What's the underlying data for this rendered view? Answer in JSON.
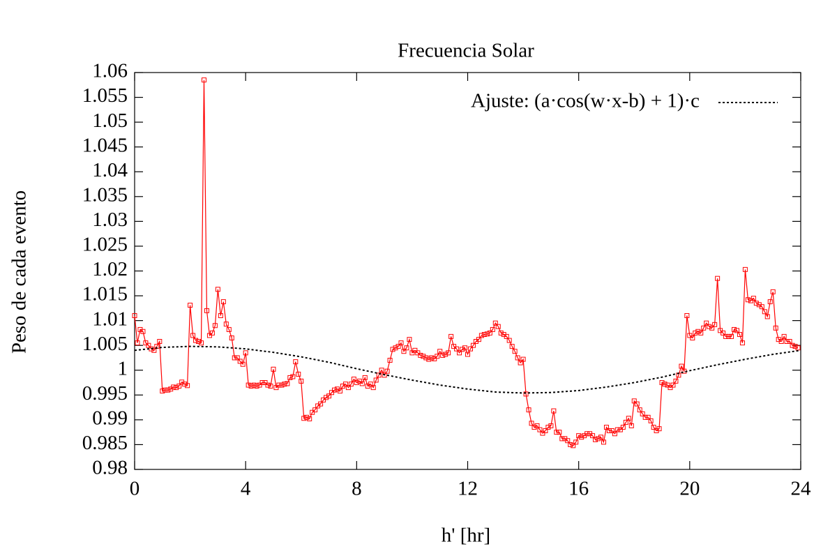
{
  "chart_data": {
    "type": "line",
    "title": "Frecuencia Solar",
    "x_label": "h' [hr]",
    "y_label": "Peso de cada evento",
    "xlim": [
      0,
      24
    ],
    "ylim": [
      0.98,
      1.06
    ],
    "xticks": [
      0,
      4,
      8,
      12,
      16,
      20,
      24
    ],
    "yticks": [
      0.98,
      0.985,
      0.99,
      0.995,
      1,
      1.005,
      1.01,
      1.015,
      1.02,
      1.025,
      1.03,
      1.035,
      1.04,
      1.045,
      1.05,
      1.055,
      1.06
    ],
    "grid": false,
    "legend": "top-right",
    "series": [
      {
        "color": "#ff0000",
        "marker": "square",
        "x": [
          0,
          0.1,
          0.2,
          0.3,
          0.4,
          0.5,
          0.6,
          0.7,
          0.8,
          0.9,
          1,
          1.1,
          1.2,
          1.3,
          1.4,
          1.5,
          1.6,
          1.7,
          1.8,
          1.9,
          2,
          2.1,
          2.2,
          2.3,
          2.4,
          2.5,
          2.6,
          2.7,
          2.8,
          2.9,
          3,
          3.1,
          3.2,
          3.3,
          3.4,
          3.5,
          3.6,
          3.7,
          3.8,
          3.9,
          4,
          4.1,
          4.2,
          4.3,
          4.4,
          4.5,
          4.6,
          4.7,
          4.8,
          4.9,
          5,
          5.1,
          5.2,
          5.3,
          5.4,
          5.5,
          5.6,
          5.7,
          5.8,
          5.9,
          6,
          6.1,
          6.2,
          6.3,
          6.4,
          6.5,
          6.6,
          6.7,
          6.8,
          6.9,
          7,
          7.1,
          7.2,
          7.3,
          7.4,
          7.5,
          7.6,
          7.7,
          7.8,
          7.9,
          8,
          8.1,
          8.2,
          8.3,
          8.4,
          8.5,
          8.6,
          8.7,
          8.8,
          8.9,
          9,
          9.1,
          9.2,
          9.3,
          9.4,
          9.5,
          9.6,
          9.7,
          9.8,
          9.9,
          10,
          10.1,
          10.2,
          10.3,
          10.4,
          10.5,
          10.6,
          10.7,
          10.8,
          10.9,
          11,
          11.1,
          11.2,
          11.3,
          11.4,
          11.5,
          11.6,
          11.7,
          11.8,
          11.9,
          12,
          12.1,
          12.2,
          12.3,
          12.4,
          12.5,
          12.6,
          12.7,
          12.8,
          12.9,
          13,
          13.1,
          13.2,
          13.3,
          13.4,
          13.5,
          13.6,
          13.7,
          13.8,
          13.9,
          14,
          14.1,
          14.2,
          14.3,
          14.4,
          14.5,
          14.6,
          14.7,
          14.8,
          14.9,
          15,
          15.1,
          15.2,
          15.3,
          15.4,
          15.5,
          15.6,
          15.7,
          15.8,
          15.9,
          16,
          16.1,
          16.2,
          16.3,
          16.4,
          16.5,
          16.6,
          16.7,
          16.8,
          16.9,
          17,
          17.1,
          17.2,
          17.3,
          17.4,
          17.5,
          17.6,
          17.7,
          17.8,
          17.9,
          18,
          18.1,
          18.2,
          18.3,
          18.4,
          18.5,
          18.6,
          18.7,
          18.8,
          18.9,
          19,
          19.1,
          19.2,
          19.3,
          19.4,
          19.5,
          19.6,
          19.7,
          19.8,
          19.9,
          20,
          20.1,
          20.2,
          20.3,
          20.4,
          20.5,
          20.6,
          20.7,
          20.8,
          20.9,
          21,
          21.1,
          21.2,
          21.3,
          21.4,
          21.5,
          21.6,
          21.7,
          21.8,
          21.9,
          22,
          22.1,
          22.2,
          22.3,
          22.4,
          22.5,
          22.6,
          22.7,
          22.8,
          22.9,
          23,
          23.1,
          23.2,
          23.3,
          23.4,
          23.5,
          23.6,
          23.7,
          23.8,
          23.9
        ],
        "values": [
          1.011,
          1.0055,
          1.0082,
          1.0078,
          1.0055,
          1.005,
          1.0043,
          1.004,
          1.0048,
          1.0058,
          0.9958,
          0.996,
          0.996,
          0.9962,
          0.9966,
          0.9965,
          0.9968,
          0.9976,
          0.9972,
          0.9969,
          1.0131,
          1.007,
          1.006,
          1.0058,
          1.0055,
          1.0585,
          1.012,
          1.007,
          1.0075,
          1.009,
          1.0163,
          1.011,
          1.0138,
          1.0093,
          1.0082,
          1.0065,
          1.0025,
          1.0025,
          1.0018,
          1.0012,
          1.0035,
          0.997,
          0.9968,
          0.997,
          0.9968,
          0.997,
          0.9975,
          0.9975,
          0.997,
          0.9968,
          1.0002,
          0.9965,
          0.997,
          0.997,
          0.9972,
          0.9973,
          0.9985,
          0.9987,
          1.0017,
          0.9992,
          0.9978,
          0.9903,
          0.9905,
          0.9902,
          0.9915,
          0.992,
          0.9928,
          0.9932,
          0.994,
          0.9945,
          0.9948,
          0.9955,
          0.996,
          0.9962,
          0.9958,
          0.9968,
          0.9972,
          0.9965,
          0.9972,
          0.9982,
          0.9975,
          0.9978,
          0.9973,
          0.9985,
          0.9968,
          0.9972,
          0.9965,
          0.998,
          0.999,
          1.0,
          0.999,
          0.9998,
          1.002,
          1.0042,
          1.0045,
          1.0048,
          1.0055,
          1.0038,
          1.0045,
          1.0062,
          1.0035,
          1.004,
          1.0035,
          1.003,
          1.0028,
          1.0025,
          1.0022,
          1.0025,
          1.0023,
          1.0028,
          1.0038,
          1.003,
          1.0032,
          1.0035,
          1.0068,
          1.0048,
          1.0043,
          1.0035,
          1.0042,
          1.0045,
          1.0032,
          1.0043,
          1.005,
          1.0058,
          1.0062,
          1.007,
          1.0072,
          1.0073,
          1.0075,
          1.0082,
          1.0095,
          1.0088,
          1.0075,
          1.0072,
          1.0068,
          1.006,
          1.0048,
          1.0038,
          1.0025,
          1.0015,
          1.0022,
          0.9952,
          0.992,
          0.9893,
          0.9885,
          0.9888,
          0.988,
          0.9873,
          0.9878,
          0.9885,
          0.9888,
          0.9918,
          0.9875,
          0.9875,
          0.9862,
          0.9862,
          0.9858,
          0.985,
          0.9848,
          0.9855,
          0.9868,
          0.9865,
          0.9868,
          0.9872,
          0.9872,
          0.9868,
          0.986,
          0.9862,
          0.9865,
          0.9855,
          0.9885,
          0.9878,
          0.9878,
          0.9872,
          0.988,
          0.988,
          0.9885,
          0.9895,
          0.9903,
          0.9888,
          0.9938,
          0.9932,
          0.992,
          0.9912,
          0.9905,
          0.9905,
          0.9898,
          0.9885,
          0.9878,
          0.9882,
          0.9975,
          0.9972,
          0.997,
          0.9965,
          0.997,
          0.9978,
          0.999,
          1.0008,
          0.9998,
          1.011,
          1.007,
          1.0065,
          1.0075,
          1.0078,
          1.0075,
          1.0085,
          1.0095,
          1.0088,
          1.0085,
          1.0092,
          1.0185,
          1.008,
          1.0075,
          1.0068,
          1.0068,
          1.0068,
          1.0082,
          1.008,
          1.0072,
          1.0055,
          1.0203,
          1.0142,
          1.014,
          1.0145,
          1.0135,
          1.0132,
          1.0128,
          1.0118,
          1.0108,
          1.0138,
          1.0158,
          1.0085,
          1.0062,
          1.0058,
          1.0068,
          1.0058,
          1.0058,
          1.005,
          1.0048,
          1.0045
        ]
      },
      {
        "name": "Ajuste: (a·cos(w·x-b) + 1)·c",
        "color": "#000000",
        "dashed": true,
        "x": [
          0,
          1,
          2,
          3,
          4,
          5,
          6,
          7,
          8,
          9,
          10,
          11,
          12,
          13,
          14,
          15,
          16,
          17,
          18,
          19,
          20,
          21,
          22,
          23,
          24
        ],
        "values": [
          1.004,
          1.0046,
          1.0048,
          1.0047,
          1.0043,
          1.0036,
          1.0027,
          1.0016,
          1.0003,
          0.9991,
          0.998,
          0.997,
          0.9962,
          0.9956,
          0.9954,
          0.9955,
          0.9959,
          0.9966,
          0.9975,
          0.9986,
          0.9999,
          1.0011,
          1.0022,
          1.0032,
          1.004
        ]
      }
    ]
  }
}
